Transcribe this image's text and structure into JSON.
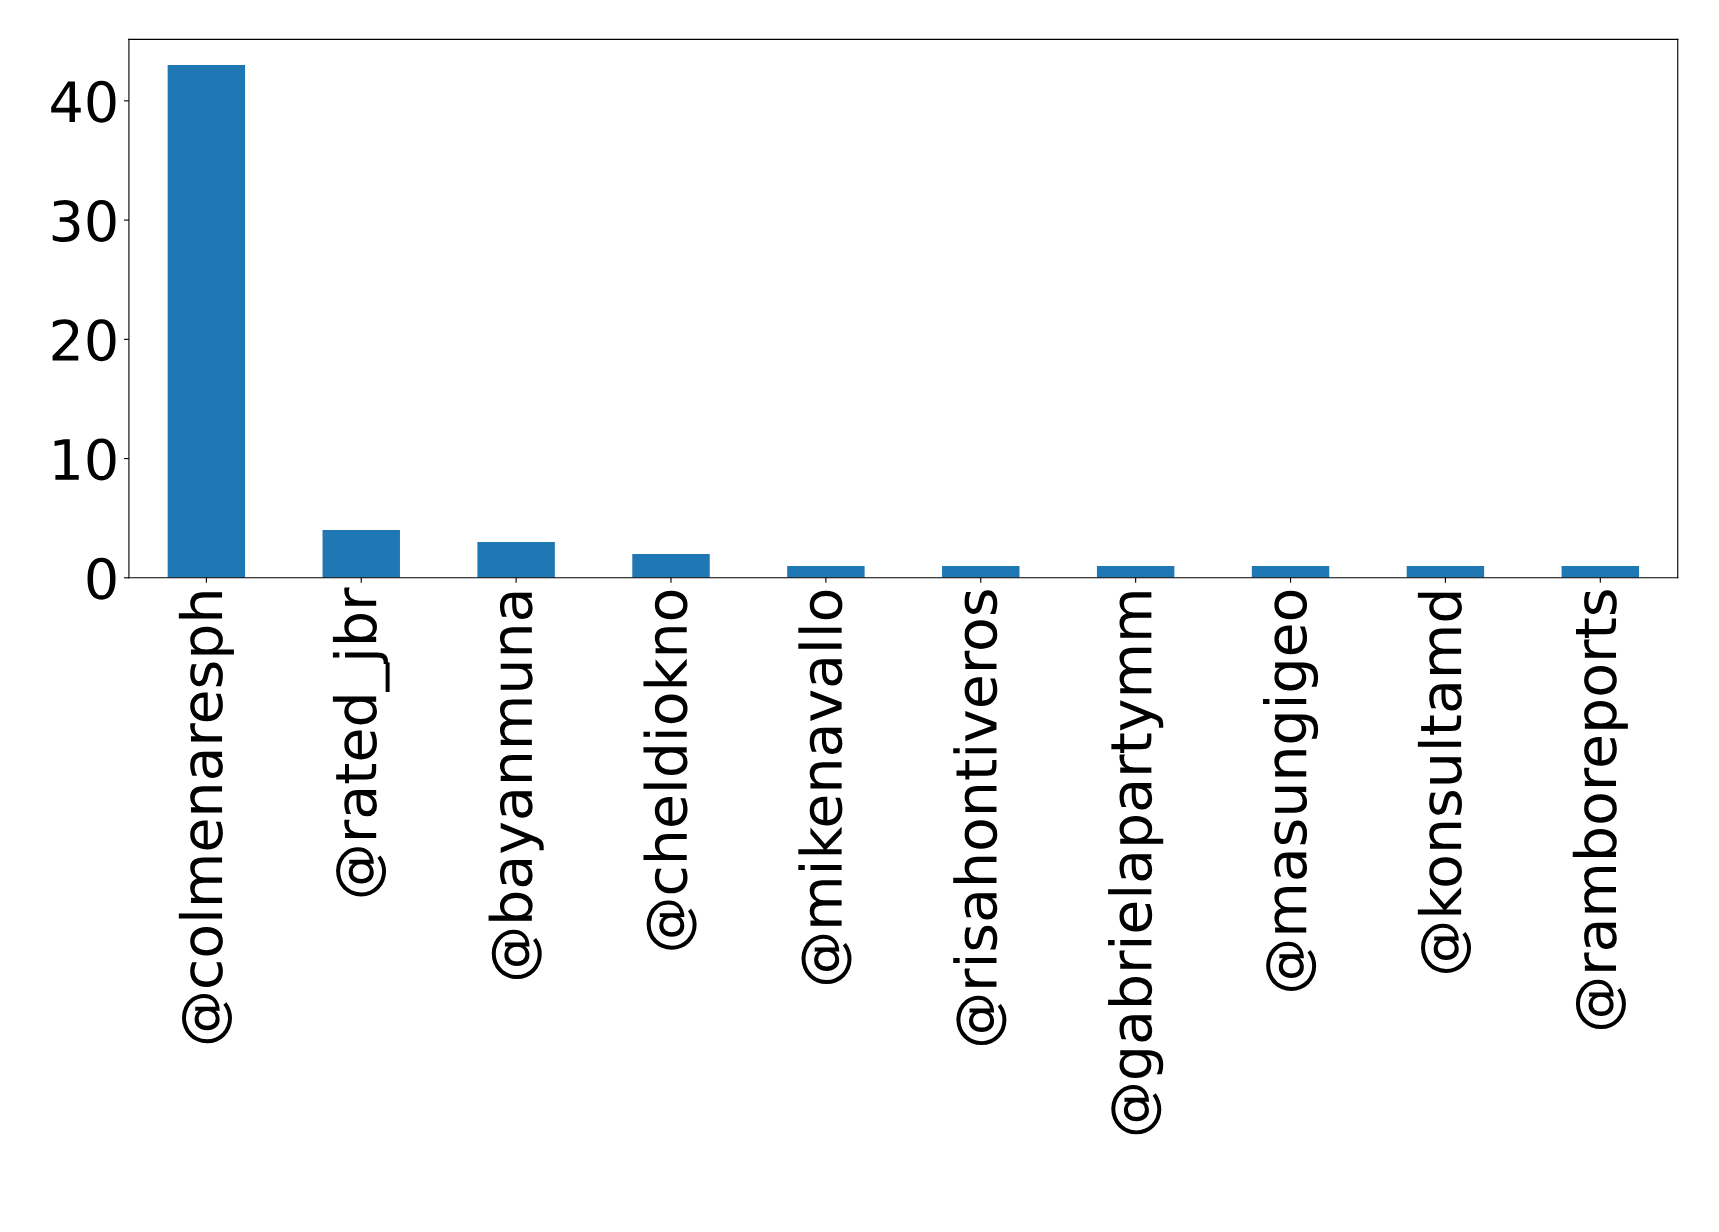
{
  "chart_data": {
    "type": "bar",
    "categories": [
      "@colmenaresph",
      "@rated_jbr",
      "@bayanmuna",
      "@cheldiokno",
      "@mikenavallo",
      "@risahontiveros",
      "@gabrielapartymm",
      "@masungigeo",
      "@konsultamd",
      "@ramboreports"
    ],
    "values": [
      43,
      4,
      3,
      2,
      1,
      1,
      1,
      1,
      1,
      1
    ],
    "color": "#1f77b4",
    "ylim": [
      0,
      45.15
    ],
    "yticks": [
      0,
      10,
      20,
      30,
      40
    ],
    "grid": false
  }
}
